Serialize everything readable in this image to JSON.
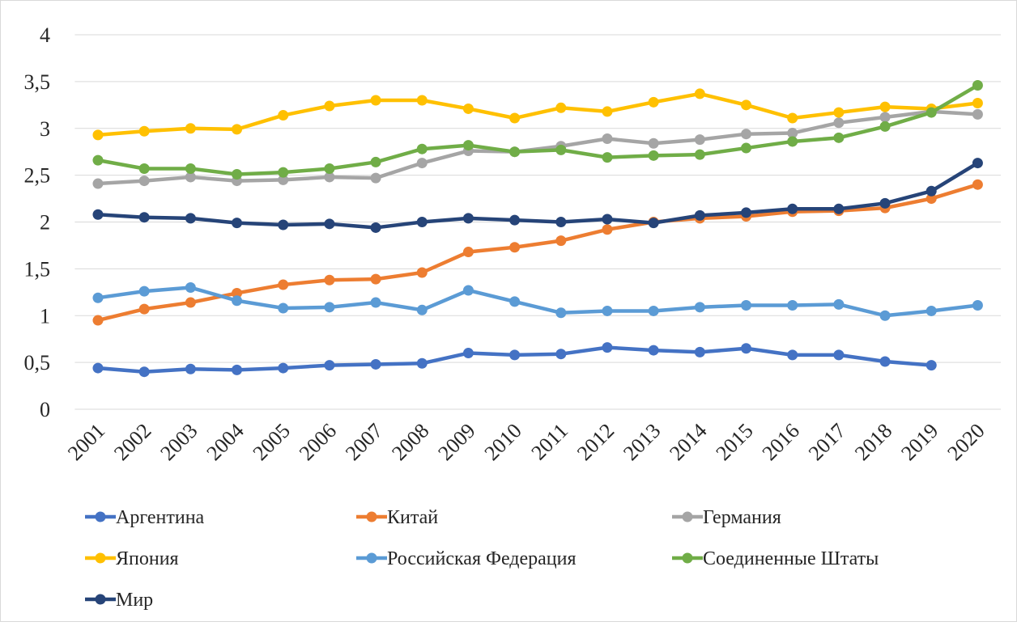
{
  "chart_data": {
    "type": "line",
    "categories": [
      "2001",
      "2002",
      "2003",
      "2004",
      "2005",
      "2006",
      "2007",
      "2008",
      "2009",
      "2010",
      "2011",
      "2012",
      "2013",
      "2014",
      "2015",
      "2016",
      "2017",
      "2018",
      "2019",
      "2020"
    ],
    "series": [
      {
        "name": "Аргентина",
        "color": "#4472c4",
        "values": [
          0.44,
          0.4,
          0.43,
          0.42,
          0.44,
          0.47,
          0.48,
          0.49,
          0.6,
          0.58,
          0.59,
          0.66,
          0.63,
          0.61,
          0.65,
          0.58,
          0.58,
          0.51,
          0.47,
          null
        ]
      },
      {
        "name": "Китай",
        "color": "#ed7d31",
        "values": [
          0.95,
          1.07,
          1.14,
          1.24,
          1.33,
          1.38,
          1.39,
          1.46,
          1.68,
          1.73,
          1.8,
          1.92,
          2.0,
          2.04,
          2.06,
          2.11,
          2.12,
          2.15,
          2.25,
          2.4
        ]
      },
      {
        "name": "Германия",
        "color": "#a5a5a5",
        "values": [
          2.41,
          2.44,
          2.48,
          2.44,
          2.45,
          2.48,
          2.47,
          2.63,
          2.76,
          2.75,
          2.81,
          2.89,
          2.84,
          2.88,
          2.94,
          2.95,
          3.06,
          3.12,
          3.18,
          3.15
        ]
      },
      {
        "name": "Япония",
        "color": "#ffc000",
        "values": [
          2.93,
          2.97,
          3.0,
          2.99,
          3.14,
          3.24,
          3.3,
          3.3,
          3.21,
          3.11,
          3.22,
          3.18,
          3.28,
          3.37,
          3.25,
          3.11,
          3.17,
          3.23,
          3.21,
          3.27
        ]
      },
      {
        "name": "Российская Федерация",
        "color": "#5b9bd5",
        "values": [
          1.19,
          1.26,
          1.3,
          1.16,
          1.08,
          1.09,
          1.14,
          1.06,
          1.27,
          1.15,
          1.03,
          1.05,
          1.05,
          1.09,
          1.11,
          1.11,
          1.12,
          1.0,
          1.05,
          1.11
        ]
      },
      {
        "name": "Соединенные Штаты",
        "color": "#70ad47",
        "values": [
          2.66,
          2.57,
          2.57,
          2.51,
          2.53,
          2.57,
          2.64,
          2.78,
          2.82,
          2.75,
          2.77,
          2.69,
          2.71,
          2.72,
          2.79,
          2.86,
          2.9,
          3.02,
          3.17,
          3.46
        ]
      },
      {
        "name": "Мир",
        "color": "#264478",
        "values": [
          2.08,
          2.05,
          2.04,
          1.99,
          1.97,
          1.98,
          1.94,
          2.0,
          2.04,
          2.02,
          2.0,
          2.03,
          1.99,
          2.07,
          2.1,
          2.14,
          2.14,
          2.2,
          2.33,
          2.63
        ]
      }
    ],
    "ylim": [
      0,
      4
    ],
    "yticks": [
      0,
      {
        "value": 0.5,
        "label": "0,5"
      },
      1,
      {
        "value": 1.5,
        "label": "1,5"
      },
      2,
      {
        "value": 2.5,
        "label": "2,5"
      },
      3,
      {
        "value": 3.5,
        "label": "3,5"
      },
      4
    ],
    "grid": true,
    "legend": "bottom"
  }
}
